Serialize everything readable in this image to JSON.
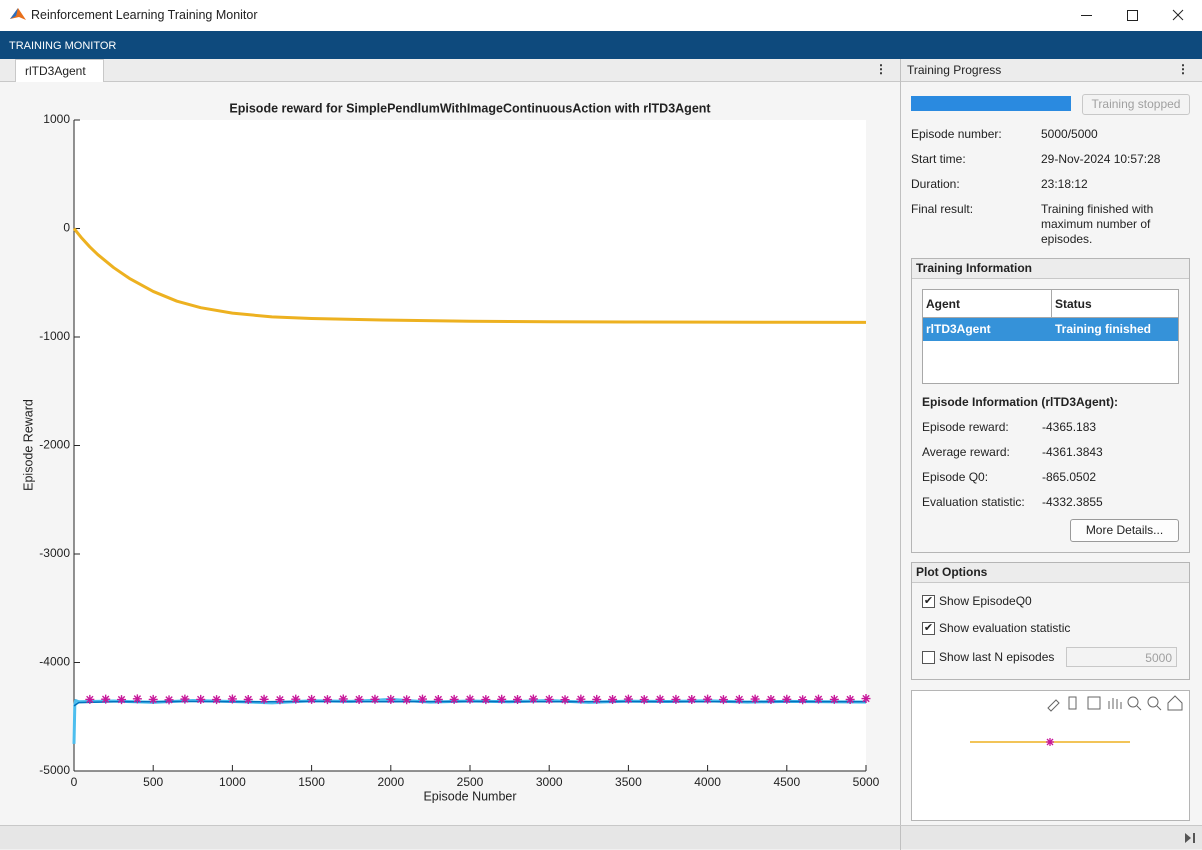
{
  "window": {
    "title": "Reinforcement Learning Training Monitor"
  },
  "toolstrip": {
    "label": "TRAINING MONITOR"
  },
  "tab": {
    "label": "rlTD3Agent"
  },
  "chart_data": {
    "type": "line",
    "title": "Episode reward for SimplePendlumWithImageContinuousAction with rlTD3Agent",
    "x_label": "Episode Number",
    "y_label": "Episode Reward",
    "xlim": [
      0,
      5000
    ],
    "ylim": [
      -5000,
      1000
    ],
    "xticks": [
      0,
      500,
      1000,
      1500,
      2000,
      2500,
      3000,
      3500,
      4000,
      4500,
      5000
    ],
    "yticks": [
      -5000,
      -4000,
      -3000,
      -2000,
      -1000,
      0,
      1000
    ],
    "grid": false,
    "series": [
      {
        "color": "#4dbeee",
        "marker": "none",
        "width": 3,
        "x": [
          0,
          5,
          10,
          30,
          250,
          500,
          750,
          1000,
          1250,
          1500,
          1750,
          2000,
          2250,
          2500,
          2750,
          3000,
          3250,
          3500,
          3750,
          4000,
          4250,
          4500,
          4750,
          5000
        ],
        "values": [
          -4750,
          -4400,
          -4350,
          -4362,
          -4355,
          -4368,
          -4350,
          -4360,
          -4372,
          -4352,
          -4358,
          -4340,
          -4365,
          -4355,
          -4362,
          -4350,
          -4368,
          -4356,
          -4360,
          -4352,
          -4365,
          -4358,
          -4362,
          -4365
        ]
      },
      {
        "color": "#0072bd",
        "marker": "none",
        "width": 1.5,
        "x": [
          0,
          30,
          250,
          500,
          750,
          1000,
          1250,
          1500,
          1750,
          2000,
          2250,
          2500,
          2750,
          3000,
          3250,
          3500,
          3750,
          4000,
          4250,
          4500,
          4750,
          5000
        ],
        "values": [
          -4400,
          -4370,
          -4362,
          -4361,
          -4360,
          -4362,
          -4361,
          -4360,
          -4361,
          -4362,
          -4361,
          -4360,
          -4361,
          -4362,
          -4361,
          -4360,
          -4361,
          -4362,
          -4361,
          -4360,
          -4361,
          -4361
        ]
      },
      {
        "color": "#edb120",
        "marker": "none",
        "width": 3,
        "x": [
          0,
          50,
          100,
          150,
          250,
          350,
          500,
          650,
          800,
          1000,
          1250,
          1500,
          2000,
          2500,
          3000,
          3500,
          4000,
          4500,
          5000
        ],
        "values": [
          0,
          -90,
          -170,
          -240,
          -360,
          -460,
          -580,
          -670,
          -730,
          -780,
          -815,
          -830,
          -845,
          -855,
          -860,
          -862,
          -863,
          -864,
          -865
        ]
      },
      {
        "color": "#c8189a",
        "marker": "star",
        "x": [
          100,
          200,
          300,
          400,
          500,
          600,
          700,
          800,
          900,
          1000,
          1100,
          1200,
          1300,
          1400,
          1500,
          1600,
          1700,
          1800,
          1900,
          2000,
          2100,
          2200,
          2300,
          2400,
          2500,
          2600,
          2700,
          2800,
          2900,
          3000,
          3100,
          3200,
          3300,
          3400,
          3500,
          3600,
          3700,
          3800,
          3900,
          4000,
          4100,
          4200,
          4300,
          4400,
          4500,
          4600,
          4700,
          4800,
          4900,
          5000
        ],
        "values": [
          -4340,
          -4338,
          -4342,
          -4335,
          -4340,
          -4344,
          -4337,
          -4340,
          -4342,
          -4336,
          -4341,
          -4339,
          -4343,
          -4338,
          -4340,
          -4342,
          -4336,
          -4341,
          -4339,
          -4340,
          -4343,
          -4337,
          -4341,
          -4340,
          -4338,
          -4342,
          -4339,
          -4341,
          -4336,
          -4340,
          -4343,
          -4338,
          -4340,
          -4341,
          -4337,
          -4342,
          -4339,
          -4340,
          -4341,
          -4338,
          -4342,
          -4340,
          -4337,
          -4341,
          -4339,
          -4343,
          -4338,
          -4340,
          -4341,
          -4332
        ]
      }
    ]
  },
  "progress": {
    "title": "Training Progress",
    "percent": 100,
    "button": "Training stopped",
    "fields": [
      {
        "label": "Episode number:",
        "value": "5000/5000"
      },
      {
        "label": "Start time:",
        "value": "29-Nov-2024 10:57:28"
      },
      {
        "label": "Duration:",
        "value": "23:18:12"
      },
      {
        "label": "Final result:",
        "value": "Training finished with maximum number of episodes."
      }
    ]
  },
  "training_information": {
    "title": "Training Information",
    "columns": [
      "Agent",
      "Status"
    ],
    "rows": [
      [
        "rlTD3Agent",
        "Training finished"
      ]
    ],
    "episode_title": "Episode Information (rlTD3Agent):",
    "fields": [
      {
        "label": "Episode reward:",
        "value": "-4365.183"
      },
      {
        "label": "Average reward:",
        "value": "-4361.3843"
      },
      {
        "label": "Episode Q0:",
        "value": "-865.0502"
      },
      {
        "label": "Evaluation statistic:",
        "value": "-4332.3855"
      }
    ],
    "button": "More Details..."
  },
  "plot_options": {
    "title": "Plot Options",
    "options": [
      {
        "label": "Show EpisodeQ0",
        "checked": true
      },
      {
        "label": "Show evaluation statistic",
        "checked": true
      },
      {
        "label": "Show last N episodes",
        "checked": false
      }
    ],
    "last_n": "5000"
  }
}
